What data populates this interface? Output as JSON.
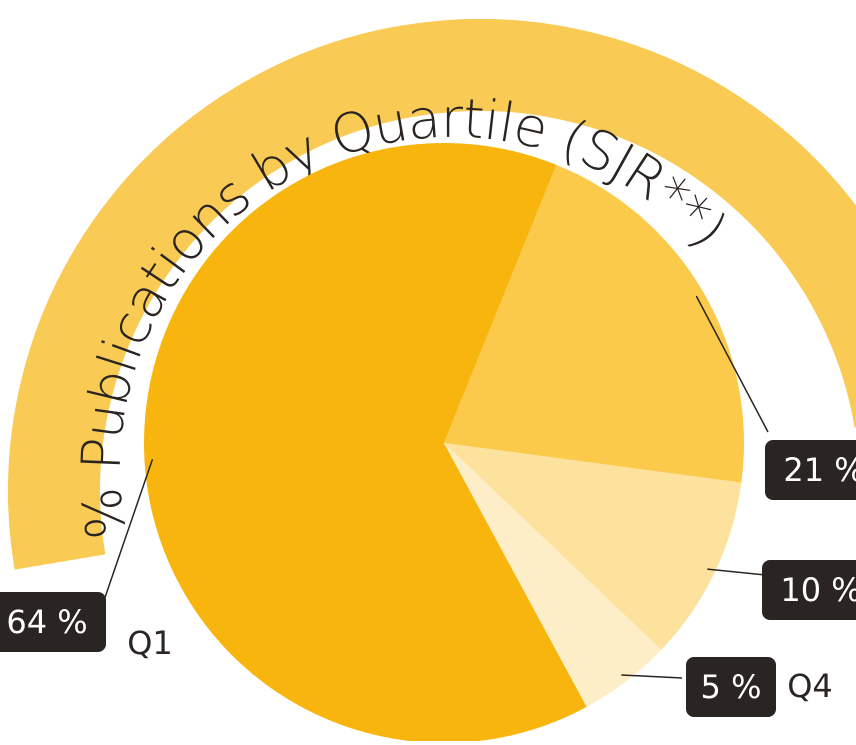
{
  "chart_data": {
    "type": "pie",
    "title": "% Publications by Quartile (SJR**)",
    "categories": [
      "Q1",
      null,
      null,
      "Q4"
    ],
    "values": [
      64,
      21,
      10,
      5
    ],
    "value_labels": [
      "64 %",
      "21 %",
      "10 %",
      "5 %"
    ],
    "colors": [
      "#F7B50E",
      "#FBCA4A",
      "#FDE29E",
      "#FEEEC8"
    ]
  }
}
